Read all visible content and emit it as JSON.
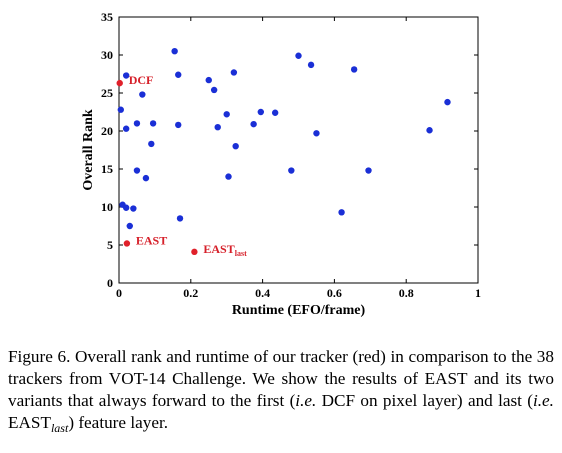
{
  "chart_data": {
    "type": "scatter",
    "xlabel": "Runtime (EFO/frame)",
    "ylabel": "Overall Rank",
    "xlim": [
      0,
      1
    ],
    "ylim": [
      0,
      35
    ],
    "xticks": [
      "0",
      "0.2",
      "0.4",
      "0.6",
      "0.8",
      "1"
    ],
    "yticks": [
      "0",
      "5",
      "10",
      "15",
      "20",
      "25",
      "30",
      "35"
    ],
    "grid": false,
    "colors": {
      "others": "#1a2fd6",
      "ours": "#e0202a"
    },
    "series": [
      {
        "color_key": "others",
        "points": [
          [
            0.005,
            22.8
          ],
          [
            0.02,
            27.3
          ],
          [
            0.02,
            20.3
          ],
          [
            0.01,
            10.3
          ],
          [
            0.02,
            9.9
          ],
          [
            0.03,
            7.5
          ],
          [
            0.04,
            9.8
          ],
          [
            0.05,
            21.0
          ],
          [
            0.05,
            14.8
          ],
          [
            0.065,
            24.8
          ],
          [
            0.075,
            13.8
          ],
          [
            0.09,
            18.3
          ],
          [
            0.095,
            21.0
          ],
          [
            0.155,
            30.5
          ],
          [
            0.165,
            27.4
          ],
          [
            0.165,
            20.8
          ],
          [
            0.17,
            8.5
          ],
          [
            0.25,
            26.7
          ],
          [
            0.265,
            25.4
          ],
          [
            0.275,
            20.5
          ],
          [
            0.3,
            22.2
          ],
          [
            0.305,
            14.0
          ],
          [
            0.32,
            27.7
          ],
          [
            0.325,
            18.0
          ],
          [
            0.375,
            20.9
          ],
          [
            0.395,
            22.5
          ],
          [
            0.435,
            22.4
          ],
          [
            0.48,
            14.8
          ],
          [
            0.5,
            29.9
          ],
          [
            0.535,
            28.7
          ],
          [
            0.55,
            19.7
          ],
          [
            0.62,
            9.3
          ],
          [
            0.655,
            28.1
          ],
          [
            0.695,
            14.8
          ],
          [
            0.865,
            20.1
          ],
          [
            0.915,
            23.8
          ]
        ]
      },
      {
        "color_key": "ours",
        "points": [
          {
            "x": 0.002,
            "y": 26.3,
            "label": "DCF"
          },
          {
            "x": 0.022,
            "y": 5.2,
            "label": "EAST"
          },
          {
            "x": 0.21,
            "y": 4.1,
            "label": "EAST",
            "label_sub": "last"
          }
        ]
      }
    ]
  },
  "caption": {
    "prefix": "Figure 6.",
    "part1": " Overall rank and runtime of our tracker (red) in comparison to the 38 trackers from VOT-14 Challenge. We show the results of EAST and its two variants that always forward to the first (",
    "ie1": "i.e.",
    "part2": " DCF on pixel layer) and last (",
    "ie2": "i.e.",
    "part3": " EAST",
    "sub": "last",
    "part4": ") feature layer."
  }
}
